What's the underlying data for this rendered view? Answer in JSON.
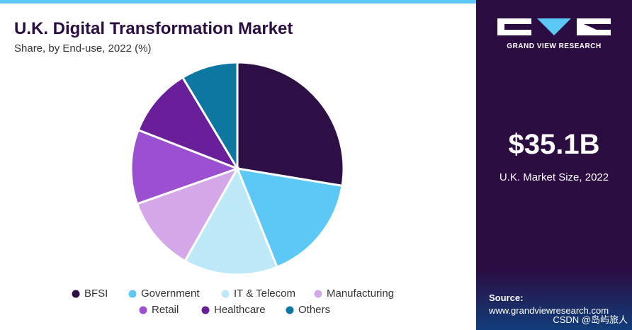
{
  "chart_data": {
    "type": "pie",
    "title": "U.K. Digital Transformation Market",
    "subtitle": "Share, by End-use, 2022 (%)",
    "categories": [
      "BFSI",
      "Government",
      "IT & Telecom",
      "Manufacturing",
      "Retail",
      "Healthcare",
      "Others"
    ],
    "values": [
      27.6,
      16.3,
      14.3,
      11.4,
      11.3,
      10.5,
      8.6
    ],
    "colors": [
      "#2e0f45",
      "#5bc8f5",
      "#bde8f8",
      "#d4a8e8",
      "#9b4fd1",
      "#6a1f9a",
      "#0d77a0"
    ]
  },
  "sidebar": {
    "brand": "GRAND VIEW RESEARCH",
    "market_value": "$35.1B",
    "market_label": "U.K. Market Size, 2022",
    "source_label": "Source:",
    "source_url": "www.grandviewresearch.com"
  },
  "watermark": "CSDN @岛屿旅人"
}
